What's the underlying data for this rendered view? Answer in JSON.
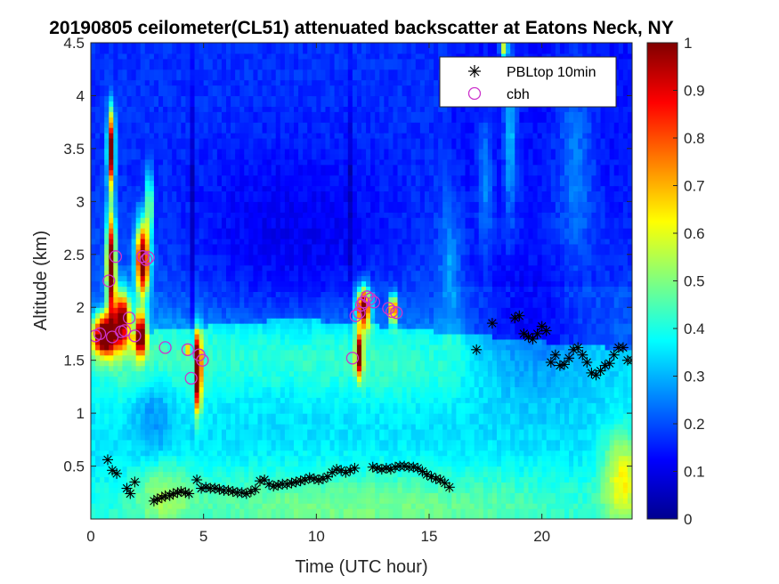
{
  "chart_data": {
    "type": "heatmap",
    "title": "20190805 ceilometer(CL51) attenuated backscatter at Eatons Neck, NY",
    "xlabel": "Time (UTC hour)",
    "ylabel": "Altitude (km)",
    "xlim": [
      0,
      24
    ],
    "ylim": [
      0,
      4.5
    ],
    "x_ticks": [
      0,
      5,
      10,
      15,
      20
    ],
    "x_tick_labels": [
      "0",
      "5",
      "10",
      "15",
      "20"
    ],
    "y_ticks": [
      0.5,
      1,
      1.5,
      2,
      2.5,
      3,
      3.5,
      4,
      4.5
    ],
    "y_tick_labels": [
      "0.5",
      "1",
      "1.5",
      "2",
      "2.5",
      "3",
      "3.5",
      "4",
      "4.5"
    ],
    "colorbar": {
      "colormap": "jet",
      "range": [
        0,
        1
      ],
      "ticks": [
        0,
        0.1,
        0.2,
        0.3,
        0.4,
        0.5,
        0.6,
        0.7,
        0.8,
        0.9,
        1
      ],
      "tick_labels": [
        "0",
        "0.1",
        "0.2",
        "0.3",
        "0.4",
        "0.5",
        "0.6",
        "0.7",
        "0.8",
        "0.9",
        "1"
      ]
    },
    "legend": {
      "location": "top-right",
      "entries": [
        {
          "label": "PBLtop 10min",
          "marker": "asterisk",
          "color": "#000000"
        },
        {
          "label": "cbh",
          "marker": "circle",
          "color": "#cc33cc"
        }
      ]
    },
    "series": [
      {
        "name": "PBLtop 10min",
        "x": [
          0.75,
          0.95,
          1.15,
          1.6,
          1.75,
          1.95,
          2.8,
          2.95,
          3.15,
          3.3,
          3.5,
          3.65,
          3.85,
          4.0,
          4.2,
          4.35,
          4.7,
          4.9,
          5.1,
          5.3,
          5.5,
          5.7,
          5.9,
          6.1,
          6.3,
          6.5,
          6.7,
          6.9,
          7.1,
          7.3,
          7.5,
          7.7,
          7.9,
          8.1,
          8.3,
          8.5,
          8.7,
          8.9,
          9.1,
          9.3,
          9.5,
          9.7,
          9.9,
          10.1,
          10.3,
          10.5,
          10.7,
          10.9,
          11.1,
          11.3,
          11.5,
          11.7,
          12.5,
          12.7,
          12.9,
          13.1,
          13.3,
          13.5,
          13.7,
          13.9,
          14.1,
          14.3,
          14.5,
          14.7,
          14.9,
          15.1,
          15.3,
          15.5,
          15.7,
          15.9,
          17.1,
          17.8,
          18.8,
          19.0,
          19.2,
          19.4,
          19.6,
          19.8,
          20.0,
          20.2,
          20.4,
          20.6,
          20.8,
          21.0,
          21.2,
          21.4,
          21.6,
          21.8,
          22.0,
          22.2,
          22.4,
          22.6,
          22.8,
          23.0,
          23.2,
          23.4,
          23.6,
          23.8,
          24.0
        ],
        "y": [
          0.56,
          0.46,
          0.43,
          0.29,
          0.24,
          0.35,
          0.17,
          0.19,
          0.2,
          0.22,
          0.22,
          0.24,
          0.25,
          0.26,
          0.25,
          0.24,
          0.37,
          0.29,
          0.3,
          0.29,
          0.29,
          0.28,
          0.27,
          0.27,
          0.26,
          0.25,
          0.25,
          0.24,
          0.26,
          0.28,
          0.36,
          0.37,
          0.33,
          0.31,
          0.32,
          0.33,
          0.33,
          0.34,
          0.35,
          0.36,
          0.37,
          0.39,
          0.38,
          0.37,
          0.38,
          0.4,
          0.44,
          0.47,
          0.46,
          0.44,
          0.46,
          0.48,
          0.49,
          0.48,
          0.47,
          0.48,
          0.47,
          0.49,
          0.5,
          0.5,
          0.49,
          0.49,
          0.48,
          0.45,
          0.42,
          0.4,
          0.38,
          0.37,
          0.34,
          0.3,
          1.6,
          1.85,
          1.9,
          1.92,
          1.75,
          1.72,
          1.7,
          1.75,
          1.82,
          1.78,
          1.48,
          1.55,
          1.45,
          1.46,
          1.52,
          1.6,
          1.62,
          1.55,
          1.48,
          1.38,
          1.36,
          1.4,
          1.45,
          1.47,
          1.55,
          1.62,
          1.62,
          1.5,
          1.5
        ]
      },
      {
        "name": "cbh",
        "x": [
          0.2,
          0.4,
          0.8,
          0.95,
          1.1,
          1.35,
          1.5,
          1.7,
          1.95,
          2.3,
          2.45,
          2.55,
          3.3,
          4.3,
          4.45,
          4.8,
          4.95,
          11.6,
          11.75,
          11.9,
          12.0,
          12.1,
          12.25,
          12.4,
          12.55,
          13.2,
          13.35,
          13.55
        ],
        "y": [
          1.73,
          1.75,
          2.25,
          1.72,
          2.48,
          1.77,
          1.78,
          1.9,
          1.73,
          2.48,
          2.45,
          2.47,
          1.62,
          1.6,
          1.33,
          1.55,
          1.5,
          1.52,
          1.92,
          1.95,
          2.02,
          2.05,
          2.1,
          2.08,
          2.05,
          1.99,
          1.96,
          1.95
        ]
      }
    ]
  }
}
